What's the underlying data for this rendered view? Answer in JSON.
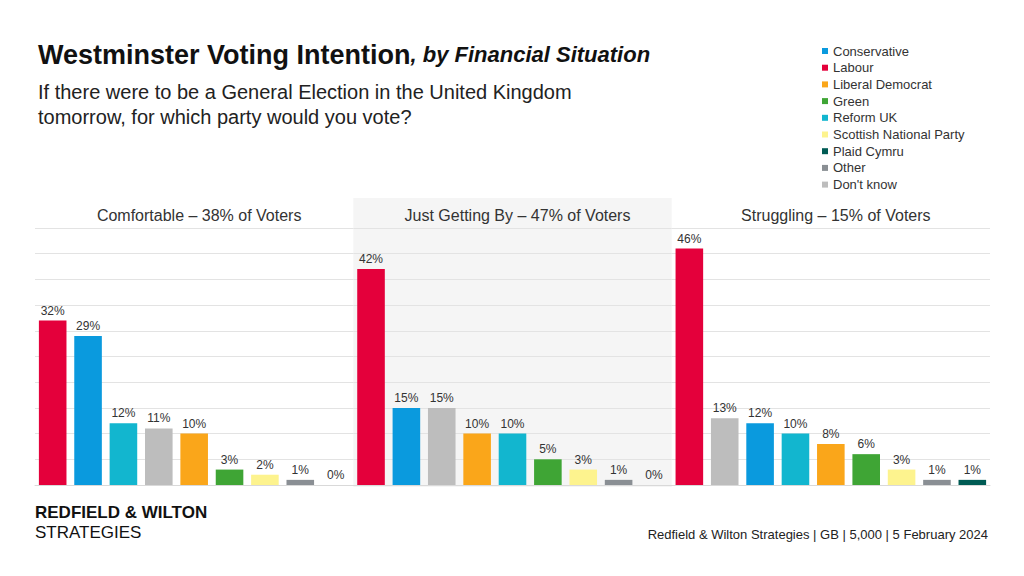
{
  "title": "Westminster Voting Intention",
  "title_suffix": ", by Financial Situation",
  "subtitle": "If there were to be a General Election in the United Kingdom tomorrow, for which party would you vote?",
  "source": "Redfield & Wilton Strategies | GB | 5,000 | 5 February 2024",
  "brand": [
    "REDFIELD & WILTON",
    "STRATEGIES"
  ],
  "legend": "top-right",
  "series": [
    {
      "name": "Conservative",
      "color": "#0a9ade"
    },
    {
      "name": "Labour",
      "color": "#e4003b"
    },
    {
      "name": "Liberal Democrat",
      "color": "#faa61a"
    },
    {
      "name": "Green",
      "color": "#3fa535"
    },
    {
      "name": "Reform UK",
      "color": "#12b6cf"
    },
    {
      "name": "Scottish National Party",
      "color": "#fdf38e"
    },
    {
      "name": "Plaid Cymru",
      "color": "#005b54"
    },
    {
      "name": "Other",
      "color": "#8a8f94"
    },
    {
      "name": "Don't know",
      "color": "#bdbdbd"
    }
  ],
  "chart_data": [
    {
      "type": "bar",
      "title": "Comfortable – 38% of Voters",
      "categories": [
        "Labour",
        "Conservative",
        "Reform UK",
        "Don't know",
        "Liberal Democrat",
        "Green",
        "Scottish National Party",
        "Other",
        "Plaid Cymru"
      ],
      "values": [
        32,
        29,
        12,
        11,
        10,
        3,
        2,
        1,
        0
      ],
      "value_labels": [
        "32%",
        "29%",
        "12%",
        "11%",
        "10%",
        "3%",
        "2%",
        "1%",
        "0%"
      ],
      "colors": [
        "#e4003b",
        "#0a9ade",
        "#12b6cf",
        "#bdbdbd",
        "#faa61a",
        "#3fa535",
        "#fdf38e",
        "#8a8f94",
        "#005b54"
      ],
      "ylim": [
        0,
        50
      ],
      "yticks": [
        0,
        5,
        10,
        15,
        20,
        25,
        30,
        35,
        40,
        45,
        50
      ],
      "grid": true,
      "data_labels": true,
      "tick_labels": false
    },
    {
      "type": "bar",
      "title": "Just Getting By – 47% of Voters",
      "categories": [
        "Labour",
        "Conservative",
        "Don't know",
        "Liberal Democrat",
        "Reform UK",
        "Green",
        "Scottish National Party",
        "Other",
        "Plaid Cymru"
      ],
      "values": [
        42,
        15,
        15,
        10,
        10,
        5,
        3,
        1,
        0
      ],
      "value_labels": [
        "42%",
        "15%",
        "15%",
        "10%",
        "10%",
        "5%",
        "3%",
        "1%",
        "0%"
      ],
      "colors": [
        "#e4003b",
        "#0a9ade",
        "#bdbdbd",
        "#faa61a",
        "#12b6cf",
        "#3fa535",
        "#fdf38e",
        "#8a8f94",
        "#005b54"
      ],
      "ylim": [
        0,
        50
      ],
      "yticks": [
        0,
        5,
        10,
        15,
        20,
        25,
        30,
        35,
        40,
        45,
        50
      ],
      "grid": true,
      "data_labels": true,
      "tick_labels": false
    },
    {
      "type": "bar",
      "title": "Struggling – 15% of Voters",
      "categories": [
        "Labour",
        "Don't know",
        "Conservative",
        "Reform UK",
        "Liberal Democrat",
        "Green",
        "Scottish National Party",
        "Other",
        "Plaid Cymru"
      ],
      "values": [
        46,
        13,
        12,
        10,
        8,
        6,
        3,
        1,
        1
      ],
      "value_labels": [
        "46%",
        "13%",
        "12%",
        "10%",
        "8%",
        "6%",
        "3%",
        "1%",
        "1%"
      ],
      "colors": [
        "#e4003b",
        "#bdbdbd",
        "#0a9ade",
        "#12b6cf",
        "#faa61a",
        "#3fa535",
        "#fdf38e",
        "#8a8f94",
        "#005b54"
      ],
      "ylim": [
        0,
        50
      ],
      "yticks": [
        0,
        5,
        10,
        15,
        20,
        25,
        30,
        35,
        40,
        45,
        50
      ],
      "grid": true,
      "data_labels": true,
      "tick_labels": false
    }
  ]
}
